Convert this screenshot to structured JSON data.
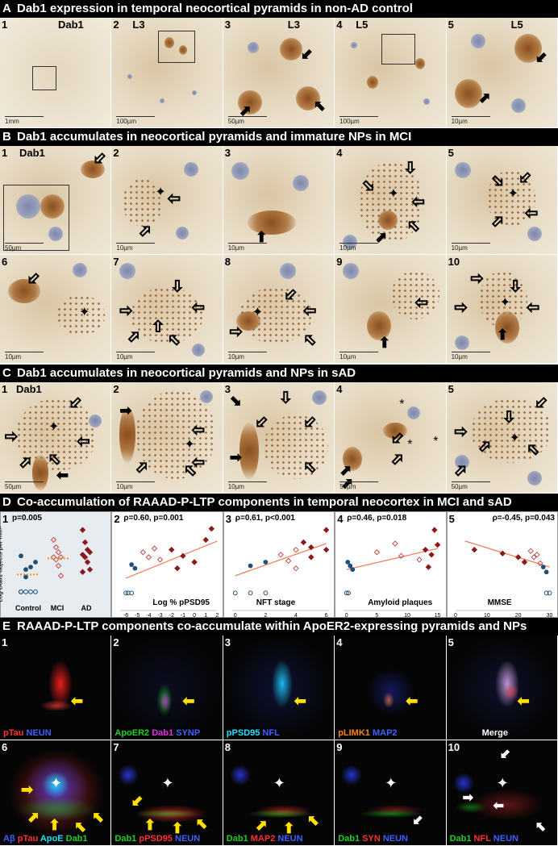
{
  "sections": {
    "A": {
      "letter": "A",
      "title": "Dab1 expression in temporal neocortical pyramids in non-AD control"
    },
    "B": {
      "letter": "B",
      "title": "Dab1 accumulates in neocortical pyramids and immature NPs in MCI"
    },
    "C": {
      "letter": "C",
      "title": "Dab1 accumulates in neocortical pyramids and NPs in sAD"
    },
    "D": {
      "letter": "D",
      "title": "Co-accumulation of RAAAD-P-LTP components in temporal neocortex in MCI and sAD"
    },
    "E": {
      "letter": "E",
      "title": "RAAAD-P-LTP components co-accumulate within ApoER2-expressing pyramids and NPs"
    }
  },
  "panelsA": [
    {
      "num": "1",
      "title": "Dab1",
      "scale": "1mm"
    },
    {
      "num": "2",
      "title": "L3",
      "scale": "100µm"
    },
    {
      "num": "3",
      "title": "L3",
      "scale": "50µm"
    },
    {
      "num": "4",
      "title": "L5",
      "scale": "100µm"
    },
    {
      "num": "5",
      "title": "L5",
      "scale": "10µm"
    }
  ],
  "panelsB": [
    {
      "num": "1",
      "title": "Dab1",
      "scale": "50µm"
    },
    {
      "num": "2",
      "title": "",
      "scale": "10µm"
    },
    {
      "num": "3",
      "title": "",
      "scale": "10µm"
    },
    {
      "num": "4",
      "title": "",
      "scale": "10µm"
    },
    {
      "num": "5",
      "title": "",
      "scale": "10µm"
    },
    {
      "num": "6",
      "title": "",
      "scale": "10µm"
    },
    {
      "num": "7",
      "title": "",
      "scale": "10µm"
    },
    {
      "num": "8",
      "title": "",
      "scale": "10µm"
    },
    {
      "num": "9",
      "title": "",
      "scale": "10µm"
    },
    {
      "num": "10",
      "title": "",
      "scale": "10µm"
    }
  ],
  "panelsC": [
    {
      "num": "1",
      "title": "Dab1",
      "scale": "50µm"
    },
    {
      "num": "2",
      "title": "",
      "scale": "10µm"
    },
    {
      "num": "3",
      "title": "",
      "scale": "10µm"
    },
    {
      "num": "4",
      "title": "",
      "scale": "50µm"
    },
    {
      "num": "5",
      "title": "",
      "scale": "50µm"
    }
  ],
  "chart_data": [
    {
      "type": "scatter",
      "panel": "1",
      "stat": "p=0.005",
      "ylabel": "Log Dab1 objects per mm²",
      "categories": [
        "Control",
        "MCI",
        "AD"
      ],
      "ylim": [
        -6,
        0
      ],
      "series": [
        {
          "name": "Control",
          "color": "#1f4e79",
          "values": [
            -5.4,
            -5.4,
            -5.4,
            -5.4,
            -5.4,
            -3.6,
            -3.4,
            -3.0,
            -2.5,
            -4.2
          ]
        },
        {
          "name": "MCI",
          "color": "#c0504d",
          "values": [
            -1.2,
            -1.8,
            -2.2,
            -2.6,
            -2.6,
            -2.8,
            -3.3,
            -4.1
          ]
        },
        {
          "name": "AD",
          "color": "#8b1a1a",
          "values": [
            -0.4,
            -1.4,
            -2.0,
            -2.2,
            -2.4,
            -2.6,
            -3.0,
            -3.6,
            -3.8
          ]
        }
      ]
    },
    {
      "type": "scatter",
      "panel": "2",
      "stat": "ρ=0.60, p=0.001",
      "xlabel": "Log % pPSD95",
      "xlim": [
        -6.5,
        2
      ],
      "xticks": [
        -6,
        -5,
        -4,
        -3,
        -2,
        -1,
        0,
        1,
        2
      ],
      "trend": [
        [
          -6,
          -4.3
        ],
        [
          2,
          -1.3
        ]
      ],
      "points": [
        [
          -6,
          -5.5,
          "c"
        ],
        [
          -5.8,
          -5.5,
          "c"
        ],
        [
          -5.5,
          -5.5,
          "c"
        ],
        [
          -5.2,
          -3.5,
          "c"
        ],
        [
          -5.5,
          -3.2,
          "c"
        ],
        [
          -4.5,
          -2.2,
          "m"
        ],
        [
          -4,
          -2.6,
          "m"
        ],
        [
          -3.5,
          -1.9,
          "m"
        ],
        [
          -2,
          -2.0,
          "a"
        ],
        [
          -1,
          -2.5,
          "a"
        ],
        [
          0,
          -3.0,
          "a"
        ],
        [
          1,
          -1.2,
          "a"
        ],
        [
          1.5,
          -0.3,
          "a"
        ],
        [
          -1.5,
          -3.5,
          "a"
        ],
        [
          -3,
          -2.8,
          "m"
        ]
      ]
    },
    {
      "type": "scatter",
      "panel": "3",
      "stat": "ρ=0.61, p<0.001",
      "xlabel": "NFT stage",
      "xlim": [
        -0.2,
        6.2
      ],
      "xticks": [
        0,
        2,
        4,
        6
      ],
      "trend": [
        [
          0,
          -4.1
        ],
        [
          6,
          -1.5
        ]
      ],
      "points": [
        [
          0,
          -5.5,
          "c"
        ],
        [
          1,
          -5.5,
          "c"
        ],
        [
          1,
          -3.3,
          "c"
        ],
        [
          2,
          -3.0,
          "c"
        ],
        [
          2,
          -5.5,
          "c"
        ],
        [
          3,
          -2.4,
          "m"
        ],
        [
          4,
          -2.0,
          "m"
        ],
        [
          4,
          -3.5,
          "m"
        ],
        [
          5,
          -1.8,
          "a"
        ],
        [
          5,
          -2.6,
          "a"
        ],
        [
          6,
          -2.0,
          "a"
        ],
        [
          6,
          -0.4,
          "a"
        ],
        [
          4.5,
          -1.4,
          "a"
        ],
        [
          3.5,
          -2.9,
          "m"
        ]
      ]
    },
    {
      "type": "scatter",
      "panel": "4",
      "stat": "ρ=0.46, p=0.018",
      "xlabel": "Amyloid plaques",
      "xlim": [
        -0.5,
        15.5
      ],
      "xticks": [
        0,
        5,
        10,
        15
      ],
      "trend": [
        [
          0,
          -3.6
        ],
        [
          15,
          -1.9
        ]
      ],
      "points": [
        [
          0,
          -5.5,
          "c"
        ],
        [
          0.3,
          -5.5,
          "c"
        ],
        [
          0.6,
          -3.3,
          "c"
        ],
        [
          1,
          -3.6,
          "c"
        ],
        [
          0.2,
          -3.0,
          "c"
        ],
        [
          5,
          -2.2,
          "m"
        ],
        [
          8,
          -1.5,
          "m"
        ],
        [
          9,
          -2.5,
          "m"
        ],
        [
          12,
          -2.8,
          "m"
        ],
        [
          13,
          -2.0,
          "a"
        ],
        [
          14,
          -2.4,
          "a"
        ],
        [
          15,
          -1.6,
          "a"
        ],
        [
          14.5,
          -0.4,
          "a"
        ],
        [
          13.5,
          -3.4,
          "a"
        ]
      ]
    },
    {
      "type": "scatter",
      "panel": "5",
      "stat": "ρ=-0.45, p=0.043",
      "xlabel": "MMSE",
      "xlim": [
        0,
        31
      ],
      "xticks": [
        0,
        10,
        20,
        30
      ],
      "trend": [
        [
          3,
          -1.3
        ],
        [
          30,
          -3.4
        ]
      ],
      "points": [
        [
          6,
          -2.0,
          "a"
        ],
        [
          15,
          -2.3,
          "a"
        ],
        [
          20,
          -2.6,
          "a"
        ],
        [
          22,
          -3.0,
          "a"
        ],
        [
          24,
          -2.1,
          "m"
        ],
        [
          25,
          -2.6,
          "m"
        ],
        [
          26,
          -2.4,
          "m"
        ],
        [
          27,
          -3.1,
          "m"
        ],
        [
          28,
          -3.4,
          "c"
        ],
        [
          29,
          -3.8,
          "c"
        ],
        [
          29,
          -5.5,
          "c"
        ],
        [
          30,
          -5.5,
          "c"
        ]
      ]
    }
  ],
  "panelsE": [
    {
      "num": "1",
      "channels": [
        {
          "text": "pTau",
          "color": "#ff3030"
        },
        {
          "text": " NEUN",
          "color": "#4060ff"
        }
      ]
    },
    {
      "num": "2",
      "channels": [
        {
          "text": "ApoER2",
          "color": "#20d020"
        },
        {
          "text": " Dab1",
          "color": "#e030e0"
        },
        {
          "text": " SYNP",
          "color": "#4060ff"
        }
      ]
    },
    {
      "num": "3",
      "channels": [
        {
          "text": "pPSD95",
          "color": "#20e0ff"
        },
        {
          "text": " NFL",
          "color": "#4060ff"
        }
      ]
    },
    {
      "num": "4",
      "channels": [
        {
          "text": "pLIMK1",
          "color": "#ff8020"
        },
        {
          "text": " MAP2",
          "color": "#4060ff"
        }
      ]
    },
    {
      "num": "5",
      "channels": [
        {
          "text": "Merge",
          "color": "#ffffff"
        }
      ]
    },
    {
      "num": "6",
      "channels": [
        {
          "text": "Aβ",
          "color": "#4060ff"
        },
        {
          "text": " pTau",
          "color": "#ff3030"
        },
        {
          "text": " ApoE",
          "color": "#20e0ff"
        },
        {
          "text": " Dab1",
          "color": "#20d020"
        }
      ]
    },
    {
      "num": "7",
      "channels": [
        {
          "text": "Dab1",
          "color": "#20d020"
        },
        {
          "text": " pPSD95",
          "color": "#ff3030"
        },
        {
          "text": " NEUN",
          "color": "#4060ff"
        }
      ]
    },
    {
      "num": "8",
      "channels": [
        {
          "text": "Dab1",
          "color": "#20d020"
        },
        {
          "text": " MAP2",
          "color": "#ff3030"
        },
        {
          "text": " NEUN",
          "color": "#4060ff"
        }
      ]
    },
    {
      "num": "9",
      "channels": [
        {
          "text": "Dab1",
          "color": "#20d020"
        },
        {
          "text": " SYN",
          "color": "#ff3030"
        },
        {
          "text": " NEUN",
          "color": "#4060ff"
        }
      ]
    },
    {
      "num": "10",
      "channels": [
        {
          "text": "Dab1",
          "color": "#20d020"
        },
        {
          "text": " NFL",
          "color": "#ff3030"
        },
        {
          "text": " NEUN",
          "color": "#4060ff"
        }
      ]
    }
  ]
}
